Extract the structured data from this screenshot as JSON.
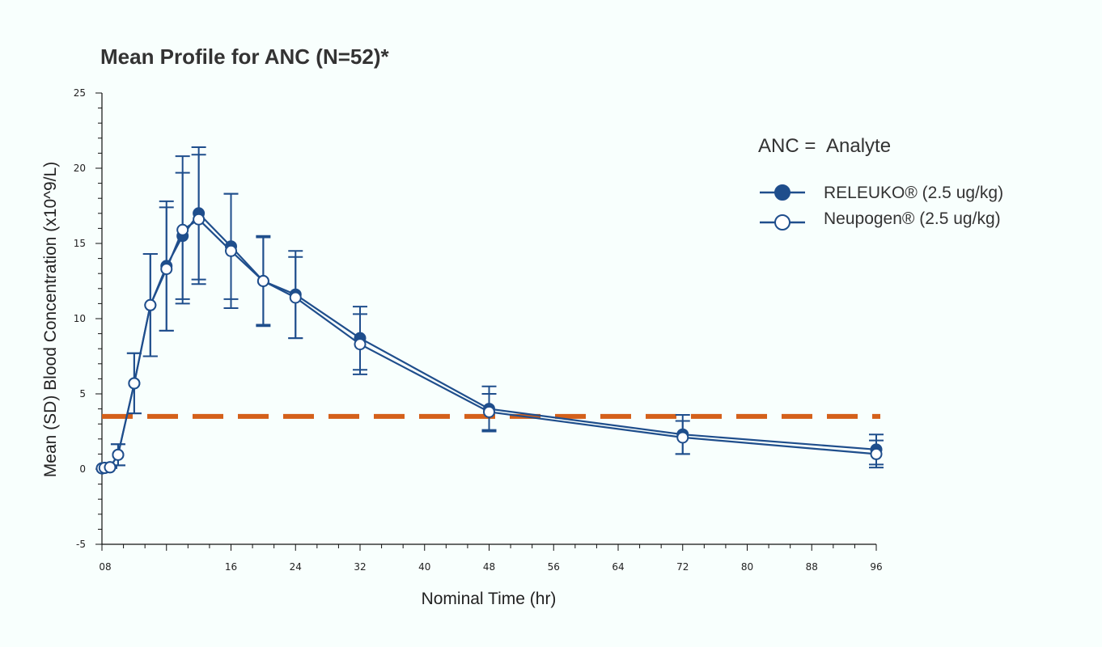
{
  "chart_data": {
    "type": "line",
    "title": "Mean Profile for ANC (N=52)*",
    "xlabel": "Nominal Time (hr)",
    "ylabel": "Mean (SD) Blood Concentration (x10^9/L)",
    "xlim": [
      0,
      96
    ],
    "ylim": [
      -5,
      25
    ],
    "x_ticks": [
      {
        "value": 0,
        "label": "08"
      },
      {
        "value": 16,
        "label": "16"
      },
      {
        "value": 24,
        "label": "24"
      },
      {
        "value": 32,
        "label": "32"
      },
      {
        "value": 40,
        "label": "40"
      },
      {
        "value": 48,
        "label": "48"
      },
      {
        "value": 56,
        "label": "56"
      },
      {
        "value": 64,
        "label": "64"
      },
      {
        "value": 72,
        "label": "72"
      },
      {
        "value": 80,
        "label": "80"
      },
      {
        "value": 88,
        "label": "88"
      },
      {
        "value": 96,
        "label": "96"
      }
    ],
    "x_unlabeled_ticks": [
      8
    ],
    "y_ticks": [
      -5,
      0,
      5,
      10,
      15,
      20,
      25
    ],
    "legend": {
      "header_name": "ANC =",
      "header_label": "Analyte",
      "placement": "top-right"
    },
    "reference_line": {
      "y": 3.5,
      "style": "dashed",
      "color": "#d4601a"
    },
    "series": [
      {
        "name": "RELEUKO® (2.5 ug/kg)",
        "marker": "filled-circle",
        "color": "#1f4e8c",
        "points": [
          {
            "x": 0,
            "y": 0.05,
            "sd": 0
          },
          {
            "x": 0.33,
            "y": 0.08,
            "sd": 0
          },
          {
            "x": 1,
            "y": 0.12,
            "sd": 0.05
          },
          {
            "x": 2,
            "y": 0.95,
            "sd": 0.7
          },
          {
            "x": 4,
            "y": 5.7,
            "sd": 2.0
          },
          {
            "x": 6,
            "y": 10.9,
            "sd": 3.4
          },
          {
            "x": 8,
            "y": 13.5,
            "sd": 4.3
          },
          {
            "x": 10,
            "y": 15.5,
            "sd": 4.2
          },
          {
            "x": 12,
            "y": 17.0,
            "sd": 4.4
          },
          {
            "x": 16,
            "y": 14.8,
            "sd": 3.5
          },
          {
            "x": 20,
            "y": 12.5,
            "sd": 3.0
          },
          {
            "x": 24,
            "y": 11.6,
            "sd": 2.9
          },
          {
            "x": 32,
            "y": 8.7,
            "sd": 2.1
          },
          {
            "x": 48,
            "y": 4.0,
            "sd": 1.5
          },
          {
            "x": 72,
            "y": 2.3,
            "sd": 1.3
          },
          {
            "x": 96,
            "y": 1.3,
            "sd": 1.0
          }
        ]
      },
      {
        "name": "Neupogen® (2.5 ug/kg)",
        "marker": "open-circle",
        "color": "#1f4e8c",
        "points": [
          {
            "x": 0,
            "y": 0.05,
            "sd": 0
          },
          {
            "x": 0.33,
            "y": 0.08,
            "sd": 0
          },
          {
            "x": 1,
            "y": 0.12,
            "sd": 0.05
          },
          {
            "x": 2,
            "y": 0.95,
            "sd": 0.7
          },
          {
            "x": 4,
            "y": 5.7,
            "sd": 2.0
          },
          {
            "x": 6,
            "y": 10.9,
            "sd": 3.4
          },
          {
            "x": 8,
            "y": 13.3,
            "sd": 4.1
          },
          {
            "x": 10,
            "y": 15.9,
            "sd": 4.9
          },
          {
            "x": 12,
            "y": 16.6,
            "sd": 4.3
          },
          {
            "x": 16,
            "y": 14.5,
            "sd": 3.8
          },
          {
            "x": 20,
            "y": 12.5,
            "sd": 2.9
          },
          {
            "x": 24,
            "y": 11.4,
            "sd": 2.7
          },
          {
            "x": 32,
            "y": 8.3,
            "sd": 2.0
          },
          {
            "x": 48,
            "y": 3.8,
            "sd": 1.2
          },
          {
            "x": 72,
            "y": 2.1,
            "sd": 1.1
          },
          {
            "x": 96,
            "y": 1.0,
            "sd": 0.9
          }
        ]
      }
    ]
  }
}
